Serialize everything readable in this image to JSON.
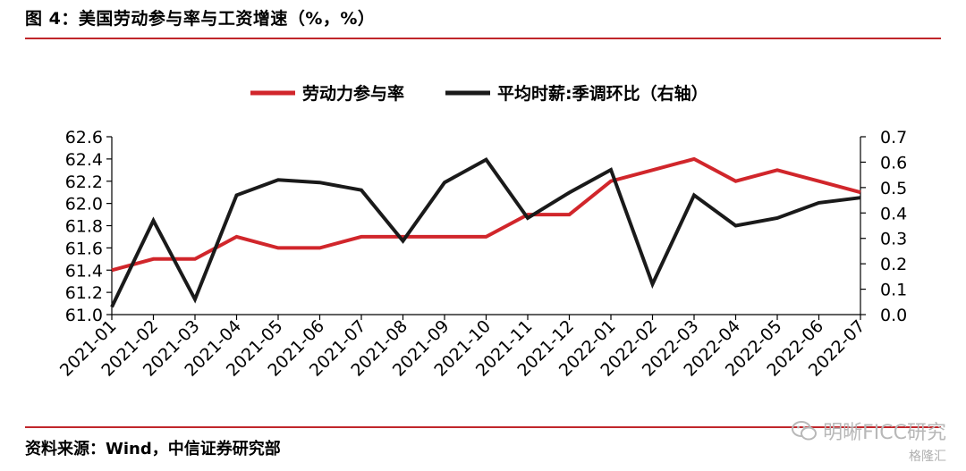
{
  "figure": {
    "title": "图 4：美国劳动参与率与工资增速（%，%）",
    "source": "资料来源：Wind，中信证券研究部",
    "watermark": "明晰FICC研究",
    "watermark_sub": "格隆汇"
  },
  "colors": {
    "rule": "#c0262b",
    "series_participation": "#d1262b",
    "series_wage": "#1a1a1a"
  },
  "chart_data": {
    "type": "line",
    "categories": [
      "2021-01",
      "2021-02",
      "2021-03",
      "2021-04",
      "2021-05",
      "2021-06",
      "2021-07",
      "2021-08",
      "2021-09",
      "2021-10",
      "2021-11",
      "2021-12",
      "2022-01",
      "2022-02",
      "2022-03",
      "2022-04",
      "2022-05",
      "2022-06",
      "2022-07"
    ],
    "series": [
      {
        "name": "劳动力参与率",
        "axis": "left",
        "values": [
          61.4,
          61.5,
          61.5,
          61.7,
          61.6,
          61.6,
          61.7,
          61.7,
          61.7,
          61.7,
          61.9,
          61.9,
          62.2,
          62.3,
          62.4,
          62.2,
          62.3,
          62.2,
          62.1
        ]
      },
      {
        "name": "平均时薪:季调环比（右轴）",
        "axis": "right",
        "values": [
          0.03,
          0.37,
          0.06,
          0.47,
          0.53,
          0.52,
          0.49,
          0.29,
          0.52,
          0.61,
          0.38,
          0.48,
          0.57,
          0.12,
          0.47,
          0.35,
          0.38,
          0.44,
          0.46
        ]
      }
    ],
    "y_left": {
      "min": 61.0,
      "max": 62.6,
      "ticks": [
        "61.0",
        "61.2",
        "61.4",
        "61.6",
        "61.8",
        "62.0",
        "62.2",
        "62.4",
        "62.6"
      ]
    },
    "y_right": {
      "min": 0.0,
      "max": 0.7,
      "ticks": [
        "0.0",
        "0.1",
        "0.2",
        "0.3",
        "0.4",
        "0.5",
        "0.6",
        "0.7"
      ]
    },
    "legend_position": "top-center",
    "grid": false
  }
}
